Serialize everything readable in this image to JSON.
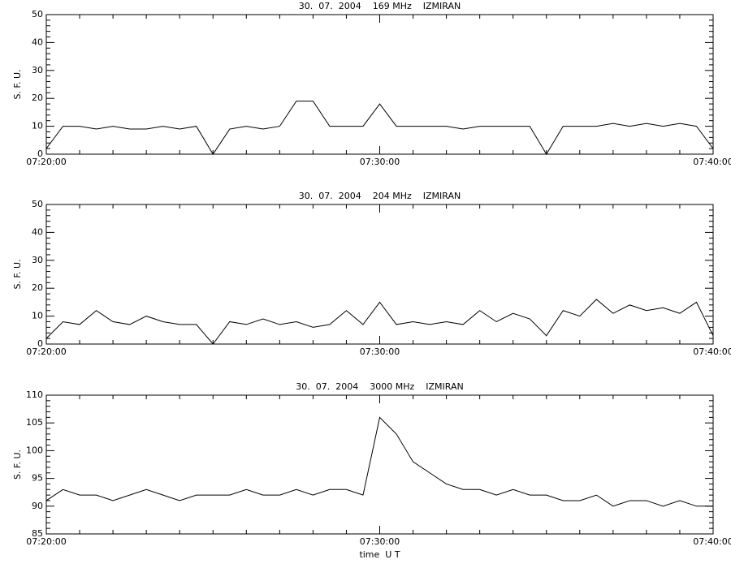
{
  "chart_data": [
    {
      "type": "line",
      "title": "30.  07.  2004    169 MHz    IZMIRAN",
      "ylabel": "S. F. U.",
      "x": [
        "07:20:00",
        "07:20:30",
        "07:21:00",
        "07:21:30",
        "07:22:00",
        "07:22:30",
        "07:23:00",
        "07:23:30",
        "07:24:00",
        "07:24:30",
        "07:25:00",
        "07:25:30",
        "07:26:00",
        "07:26:30",
        "07:27:00",
        "07:27:30",
        "07:28:00",
        "07:28:30",
        "07:29:00",
        "07:29:30",
        "07:30:00",
        "07:30:30",
        "07:31:00",
        "07:31:30",
        "07:32:00",
        "07:32:30",
        "07:33:00",
        "07:33:30",
        "07:34:00",
        "07:34:30",
        "07:35:00",
        "07:35:30",
        "07:36:00",
        "07:36:30",
        "07:37:00",
        "07:37:30",
        "07:38:00",
        "07:38:30",
        "07:39:00",
        "07:39:30",
        "07:40:00"
      ],
      "values": [
        2,
        10,
        10,
        9,
        10,
        9,
        9,
        10,
        9,
        10,
        0,
        9,
        10,
        9,
        10,
        19,
        19,
        10,
        10,
        10,
        18,
        10,
        10,
        10,
        10,
        9,
        10,
        10,
        10,
        10,
        0,
        10,
        10,
        10,
        11,
        10,
        11,
        10,
        11,
        10,
        2
      ],
      "color": "#000000",
      "xlim": [
        "07:20:00",
        "07:40:00"
      ],
      "xticks": [
        "07:20:00",
        "07:30:00",
        "07:40:00"
      ],
      "ylim": [
        0,
        50
      ],
      "yticks": [
        0,
        10,
        20,
        30,
        40,
        50
      ]
    },
    {
      "type": "line",
      "title": "30.  07.  2004    204 MHz    IZMIRAN",
      "ylabel": "S. F. U.",
      "x": [
        "07:20:00",
        "07:20:30",
        "07:21:00",
        "07:21:30",
        "07:22:00",
        "07:22:30",
        "07:23:00",
        "07:23:30",
        "07:24:00",
        "07:24:30",
        "07:25:00",
        "07:25:30",
        "07:26:00",
        "07:26:30",
        "07:27:00",
        "07:27:30",
        "07:28:00",
        "07:28:30",
        "07:29:00",
        "07:29:30",
        "07:30:00",
        "07:30:30",
        "07:31:00",
        "07:31:30",
        "07:32:00",
        "07:32:30",
        "07:33:00",
        "07:33:30",
        "07:34:00",
        "07:34:30",
        "07:35:00",
        "07:35:30",
        "07:36:00",
        "07:36:30",
        "07:37:00",
        "07:37:30",
        "07:38:00",
        "07:38:30",
        "07:39:00",
        "07:39:30",
        "07:40:00"
      ],
      "values": [
        2,
        8,
        7,
        12,
        8,
        7,
        10,
        8,
        7,
        7,
        0,
        8,
        7,
        9,
        7,
        8,
        6,
        7,
        12,
        7,
        15,
        7,
        8,
        7,
        8,
        7,
        12,
        8,
        11,
        9,
        3,
        12,
        10,
        16,
        11,
        14,
        12,
        13,
        11,
        15,
        3
      ],
      "color": "#000000",
      "xlim": [
        "07:20:00",
        "07:40:00"
      ],
      "xticks": [
        "07:20:00",
        "07:30:00",
        "07:40:00"
      ],
      "ylim": [
        0,
        50
      ],
      "yticks": [
        0,
        10,
        20,
        30,
        40,
        50
      ]
    },
    {
      "type": "line",
      "title": "30.  07.  2004    3000 MHz    IZMIRAN",
      "ylabel": "S. F. U.",
      "xlabel": "time  U T",
      "x": [
        "07:20:00",
        "07:20:30",
        "07:21:00",
        "07:21:30",
        "07:22:00",
        "07:22:30",
        "07:23:00",
        "07:23:30",
        "07:24:00",
        "07:24:30",
        "07:25:00",
        "07:25:30",
        "07:26:00",
        "07:26:30",
        "07:27:00",
        "07:27:30",
        "07:28:00",
        "07:28:30",
        "07:29:00",
        "07:29:30",
        "07:30:00",
        "07:30:30",
        "07:31:00",
        "07:31:30",
        "07:32:00",
        "07:32:30",
        "07:33:00",
        "07:33:30",
        "07:34:00",
        "07:34:30",
        "07:35:00",
        "07:35:30",
        "07:36:00",
        "07:36:30",
        "07:37:00",
        "07:37:30",
        "07:38:00",
        "07:38:30",
        "07:39:00",
        "07:39:30",
        "07:40:00"
      ],
      "values": [
        91,
        93,
        92,
        92,
        91,
        92,
        93,
        92,
        91,
        92,
        92,
        92,
        93,
        92,
        92,
        93,
        92,
        93,
        93,
        92,
        106,
        103,
        98,
        96,
        94,
        93,
        93,
        92,
        93,
        92,
        92,
        91,
        91,
        92,
        90,
        91,
        91,
        90,
        91,
        90,
        90
      ],
      "color": "#000000",
      "xlim": [
        "07:20:00",
        "07:40:00"
      ],
      "xticks": [
        "07:20:00",
        "07:30:00",
        "07:40:00"
      ],
      "ylim": [
        85,
        110
      ],
      "yticks": [
        85,
        90,
        95,
        100,
        105,
        110
      ]
    }
  ]
}
